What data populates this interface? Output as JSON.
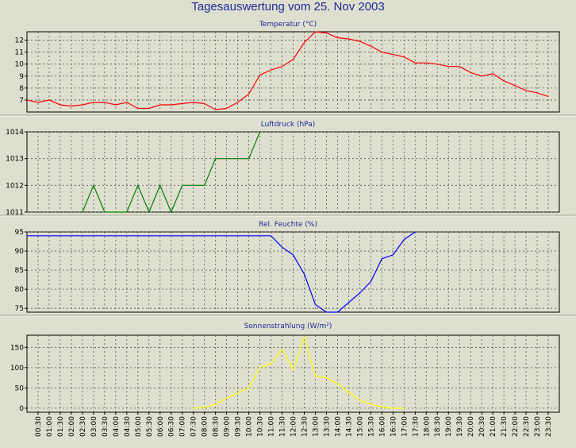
{
  "page": {
    "title": "Tagesauswertung vom 25. Nov 2003"
  },
  "colors": {
    "background": "#dfdfcf",
    "temperature": "#ff0000",
    "pressure": "#008000",
    "humidity": "#0000ff",
    "radiation": "#ffff00"
  },
  "chart_data": [
    {
      "type": "line",
      "title": "Temperatur (°C)",
      "ylim": [
        6,
        12.7
      ],
      "yticks": [
        7,
        8,
        9,
        10,
        11,
        12
      ],
      "grid": true,
      "x": [
        "00:00",
        "00:30",
        "01:00",
        "01:30",
        "02:00",
        "02:30",
        "03:00",
        "03:30",
        "04:00",
        "04:30",
        "05:00",
        "05:30",
        "06:00",
        "06:30",
        "07:00",
        "07:30",
        "08:00",
        "08:30",
        "09:00",
        "09:30",
        "10:00",
        "10:30",
        "11:00",
        "11:30",
        "12:00",
        "12:30",
        "13:00",
        "13:30",
        "14:00",
        "14:30",
        "15:00",
        "15:30",
        "16:00",
        "16:30",
        "17:00",
        "17:30",
        "18:00",
        "18:30",
        "19:00",
        "19:30",
        "20:00",
        "20:30",
        "21:00",
        "21:30",
        "22:00",
        "22:30",
        "23:00",
        "23:30"
      ],
      "series": [
        {
          "color": "#ff0000",
          "values": [
            7.0,
            6.8,
            7.0,
            6.6,
            6.5,
            6.6,
            6.8,
            6.8,
            6.6,
            6.8,
            6.3,
            6.3,
            6.6,
            6.6,
            6.7,
            6.8,
            6.7,
            6.2,
            6.3,
            6.8,
            7.5,
            9.1,
            9.5,
            9.8,
            10.4,
            11.8,
            12.7,
            12.6,
            12.2,
            12.1,
            11.9,
            11.5,
            11.0,
            10.8,
            10.6,
            10.1,
            10.1,
            10.0,
            9.8,
            9.8,
            9.3,
            9.0,
            9.2,
            8.6,
            8.2,
            7.8,
            7.6,
            7.3
          ]
        }
      ]
    },
    {
      "type": "line",
      "title": "Luftdruck (hPa)",
      "ylim": [
        1011,
        1014
      ],
      "yticks": [
        1011,
        1012,
        1013,
        1014
      ],
      "grid": true,
      "x": [
        "02:30",
        "03:00",
        "03:30",
        "04:30",
        "05:00",
        "05:30",
        "06:00",
        "06:30",
        "07:00",
        "08:00",
        "08:30",
        "09:30",
        "10:00",
        "10:30"
      ],
      "series": [
        {
          "color": "#008000",
          "values": [
            1011,
            1012,
            1011,
            1011,
            1012,
            1011,
            1012,
            1011,
            1012,
            1012,
            1013,
            1013,
            1013,
            1014
          ]
        }
      ]
    },
    {
      "type": "line",
      "title": "Rel. Feuchte (%)",
      "ylim": [
        74,
        95
      ],
      "yticks": [
        75,
        80,
        85,
        90,
        95
      ],
      "grid": true,
      "x": [
        "00:00",
        "10:30",
        "11:00",
        "11:30",
        "12:00",
        "12:30",
        "13:00",
        "13:30",
        "14:00",
        "14:30",
        "15:00",
        "15:30",
        "16:00",
        "16:30",
        "17:00",
        "17:30"
      ],
      "series": [
        {
          "color": "#0000ff",
          "values": [
            94,
            94,
            94,
            91,
            89,
            84,
            76,
            74,
            74,
            76.5,
            79,
            82,
            88,
            89,
            93,
            95
          ]
        }
      ]
    },
    {
      "type": "line",
      "title": "Sonnenstrahlung (W/m²)",
      "ylim": [
        -10,
        180
      ],
      "yticks": [
        0,
        50,
        100,
        150
      ],
      "grid": true,
      "x": [
        "07:30",
        "08:00",
        "08:30",
        "09:00",
        "09:30",
        "10:00",
        "10:30",
        "11:00",
        "11:30",
        "12:00",
        "12:30",
        "13:00",
        "13:30",
        "14:00",
        "14:30",
        "15:00",
        "15:30",
        "16:00",
        "16:30",
        "17:00"
      ],
      "series": [
        {
          "color": "#ffff00",
          "values": [
            0,
            2,
            10,
            25,
            38,
            50,
            100,
            110,
            145,
            95,
            175,
            80,
            75,
            60,
            40,
            20,
            10,
            3,
            0,
            0
          ]
        }
      ]
    }
  ],
  "x_tick_labels": [
    "00:30",
    "01:00",
    "01:30",
    "02:00",
    "02:30",
    "03:00",
    "03:30",
    "04:00",
    "04:30",
    "05:00",
    "05:30",
    "06:00",
    "06:30",
    "07:00",
    "07:30",
    "08:00",
    "08:30",
    "09:00",
    "09:30",
    "10:00",
    "10:30",
    "11:00",
    "11:30",
    "12:00",
    "12:30",
    "13:00",
    "13:30",
    "14:00",
    "14:30",
    "15:00",
    "15:30",
    "16:00",
    "16:30",
    "17:00",
    "17:30",
    "18:00",
    "18:30",
    "19:00",
    "19:30",
    "20:00",
    "20:30",
    "21:00",
    "21:30",
    "22:00",
    "22:30",
    "23:00",
    "23:30"
  ]
}
